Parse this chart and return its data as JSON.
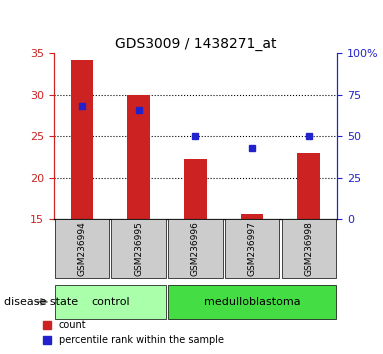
{
  "title": "GDS3009 / 1438271_at",
  "samples": [
    "GSM236994",
    "GSM236995",
    "GSM236996",
    "GSM236997",
    "GSM236998"
  ],
  "counts": [
    34.2,
    30.0,
    22.3,
    15.6,
    23.0
  ],
  "percentiles": [
    68,
    66,
    50,
    43,
    50
  ],
  "ylim_left": [
    15,
    35
  ],
  "ylim_right": [
    0,
    100
  ],
  "yticks_left": [
    15,
    20,
    25,
    30,
    35
  ],
  "yticks_right": [
    0,
    25,
    50,
    75,
    100
  ],
  "ytick_labels_right": [
    "0",
    "25",
    "50",
    "75",
    "100%"
  ],
  "bar_color": "#cc2222",
  "dot_color": "#2222cc",
  "bar_width": 0.4,
  "groups": [
    {
      "label": "control",
      "samples": [
        0,
        1
      ],
      "color": "#aaffaa"
    },
    {
      "label": "medulloblastoma",
      "samples": [
        2,
        3,
        4
      ],
      "color": "#44dd44"
    }
  ],
  "legend_count_label": "count",
  "legend_percentile_label": "percentile rank within the sample",
  "disease_state_label": "disease state",
  "background_color": "#ffffff",
  "plot_bg": "#ffffff",
  "tick_bg": "#cccccc"
}
